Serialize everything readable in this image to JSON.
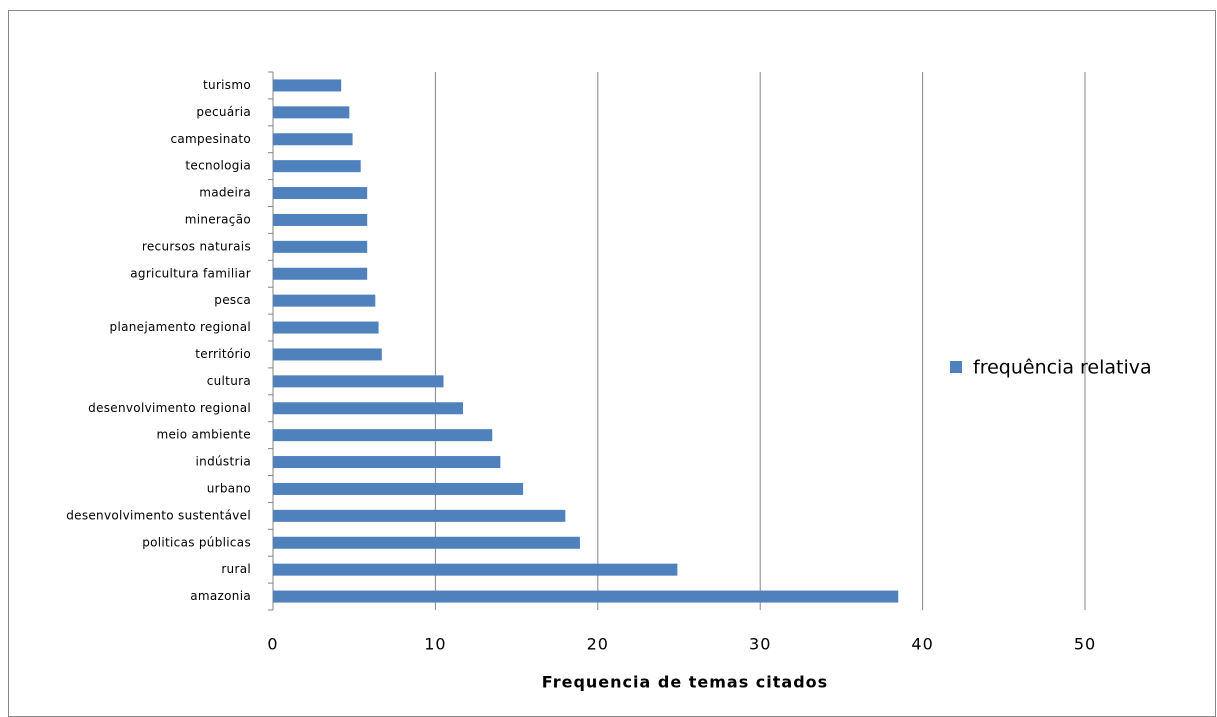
{
  "chart_data": {
    "type": "bar",
    "orientation": "horizontal",
    "x_label": "Frequencia de temas citados",
    "categories": [
      "amazonia",
      "rural",
      "politicas públicas",
      "desenvolvimento sustentável",
      "urbano",
      "indústria",
      "meio ambiente",
      "desenvolvimento regional",
      "cultura",
      "território",
      "planejamento regional",
      "pesca",
      "agricultura familiar",
      "recursos naturais",
      "mineração",
      "madeira",
      "tecnologia",
      "campesinato",
      "pecuária",
      "turismo"
    ],
    "series": [
      {
        "name": "frequência relativa",
        "color": "#4f81bd",
        "values": [
          38.5,
          24.9,
          18.9,
          18.0,
          15.4,
          14.0,
          13.5,
          11.7,
          10.5,
          6.7,
          6.5,
          6.3,
          5.8,
          5.8,
          5.8,
          5.8,
          5.4,
          4.9,
          4.7,
          4.2
        ]
      }
    ],
    "xlim": [
      0,
      50
    ],
    "xticks": [
      0,
      10,
      20,
      30,
      40,
      50
    ],
    "grid": true,
    "legend": "right"
  }
}
